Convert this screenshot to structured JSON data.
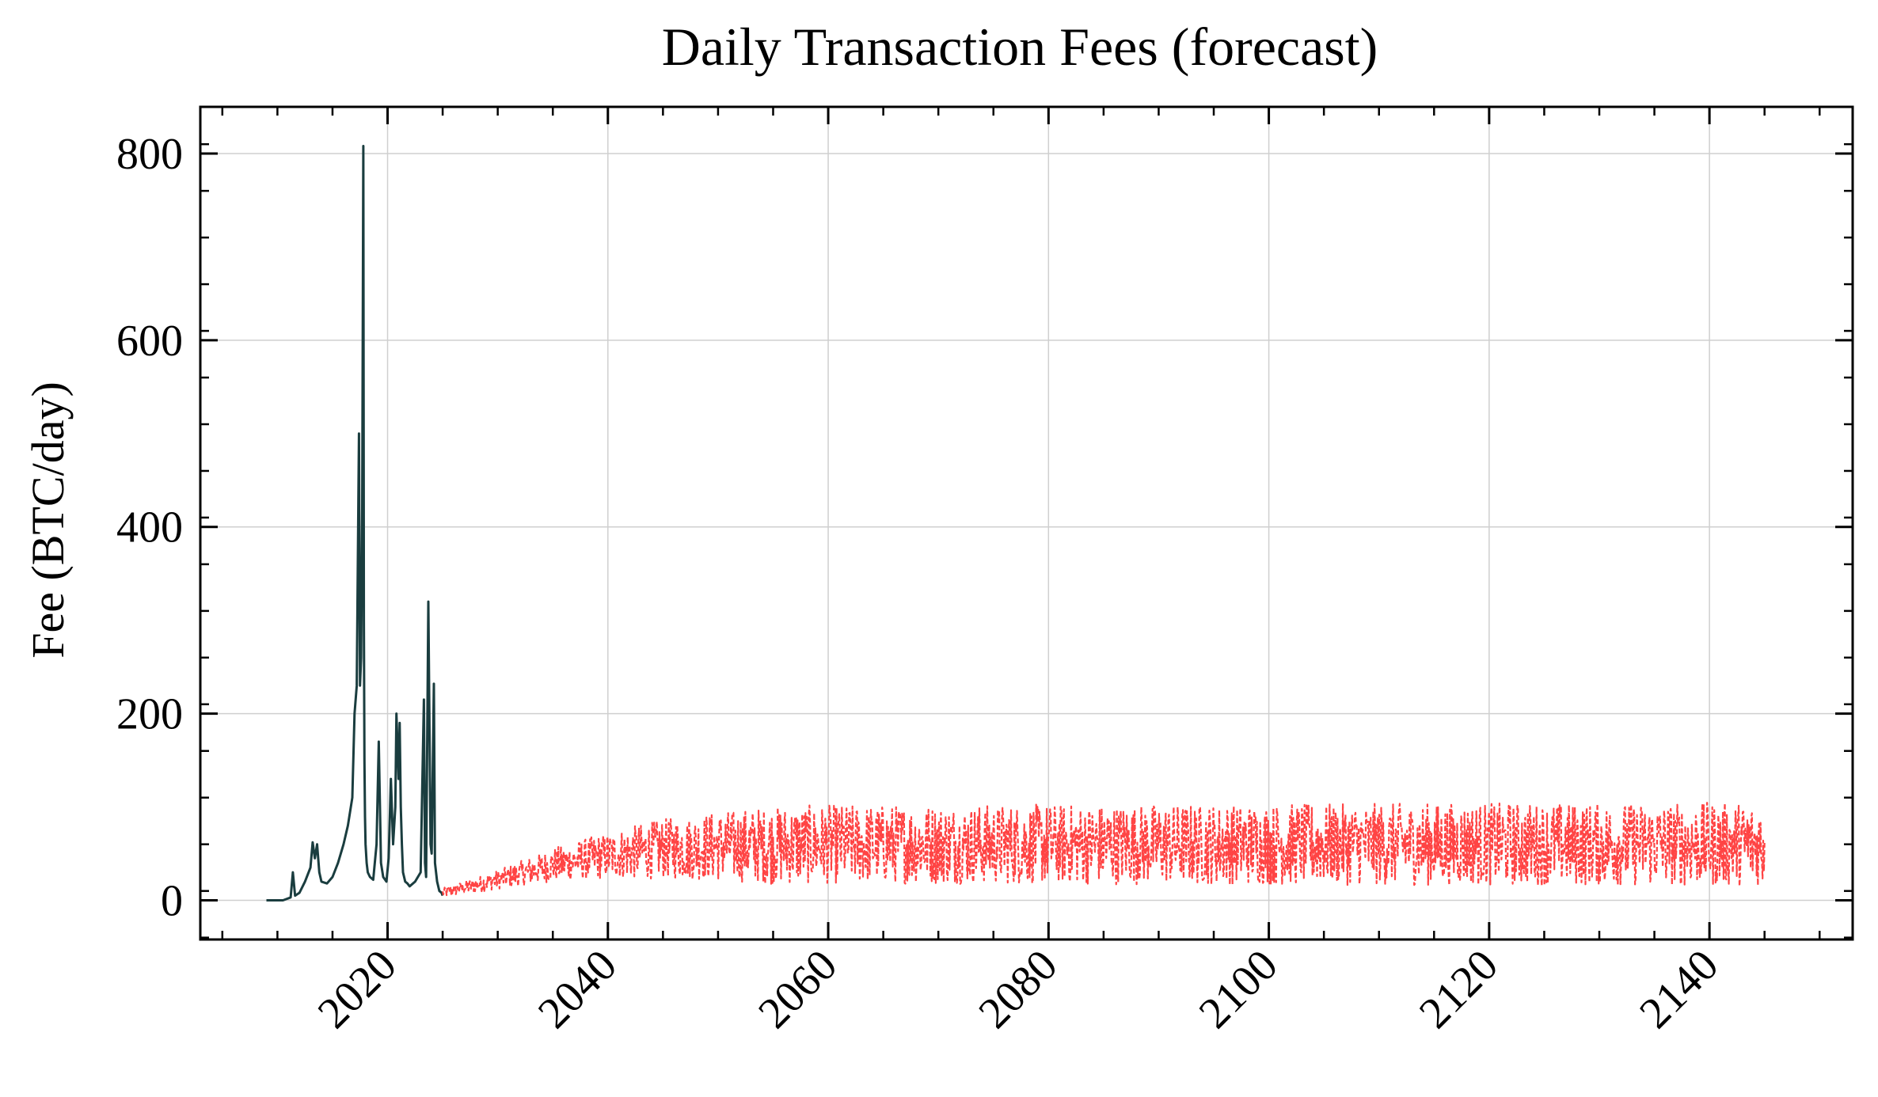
{
  "chart_data": {
    "type": "line",
    "title": "Daily Transaction Fees (forecast)",
    "xlabel": "",
    "ylabel": "Fee (BTC/day)",
    "x_axis": "date (year)",
    "xlim": [
      2003,
      2153
    ],
    "ylim": [
      -42,
      850
    ],
    "x_ticks": [
      "2020",
      "2040",
      "2060",
      "2080",
      "2100",
      "2120",
      "2140"
    ],
    "y_ticks": [
      "0",
      "200",
      "400",
      "600",
      "800"
    ],
    "grid": true,
    "legend": "none",
    "series": [
      {
        "role": "historical",
        "color": "#1a3d3f",
        "style": "solid",
        "x": [
          2009.0,
          2010.5,
          2011.2,
          2011.4,
          2011.6,
          2012.0,
          2012.5,
          2013.0,
          2013.2,
          2013.4,
          2013.6,
          2013.8,
          2014.0,
          2014.5,
          2015.0,
          2015.5,
          2016.0,
          2016.4,
          2016.8,
          2017.0,
          2017.2,
          2017.4,
          2017.5,
          2017.6,
          2017.7,
          2017.8,
          2017.85,
          2017.9,
          2017.95,
          2018.0,
          2018.1,
          2018.2,
          2018.4,
          2018.7,
          2019.0,
          2019.2,
          2019.4,
          2019.6,
          2019.9,
          2020.1,
          2020.3,
          2020.5,
          2020.7,
          2020.8,
          2021.0,
          2021.1,
          2021.2,
          2021.3,
          2021.4,
          2021.6,
          2021.8,
          2022.0,
          2022.5,
          2023.0,
          2023.3,
          2023.4,
          2023.5,
          2023.7,
          2023.9,
          2024.0,
          2024.2,
          2024.3,
          2024.5,
          2024.7,
          2024.9,
          2025.0
        ],
        "y": [
          0,
          0,
          3,
          30,
          5,
          8,
          20,
          35,
          62,
          45,
          60,
          30,
          20,
          18,
          25,
          40,
          60,
          80,
          110,
          200,
          230,
          500,
          230,
          260,
          420,
          808,
          300,
          150,
          90,
          60,
          40,
          30,
          25,
          22,
          60,
          170,
          40,
          25,
          20,
          45,
          130,
          60,
          100,
          200,
          130,
          190,
          100,
          60,
          30,
          20,
          18,
          15,
          20,
          30,
          215,
          40,
          25,
          320,
          60,
          50,
          232,
          40,
          20,
          10,
          8,
          5
        ]
      },
      {
        "role": "forecast",
        "color": "#ff4444",
        "style": "dashed",
        "start": 2025.0,
        "end": 2145.0,
        "mean": [
          {
            "x": 2025,
            "y": 8
          },
          {
            "x": 2030,
            "y": 22
          },
          {
            "x": 2035,
            "y": 38
          },
          {
            "x": 2040,
            "y": 48
          },
          {
            "x": 2045,
            "y": 55
          },
          {
            "x": 2050,
            "y": 58
          },
          {
            "x": 2060,
            "y": 60
          },
          {
            "x": 2145,
            "y": 60
          }
        ],
        "band_halfwidth": [
          {
            "x": 2025,
            "y": 5
          },
          {
            "x": 2030,
            "y": 10
          },
          {
            "x": 2035,
            "y": 18
          },
          {
            "x": 2045,
            "y": 32
          },
          {
            "x": 2055,
            "y": 42
          },
          {
            "x": 2145,
            "y": 45
          }
        ]
      }
    ]
  }
}
